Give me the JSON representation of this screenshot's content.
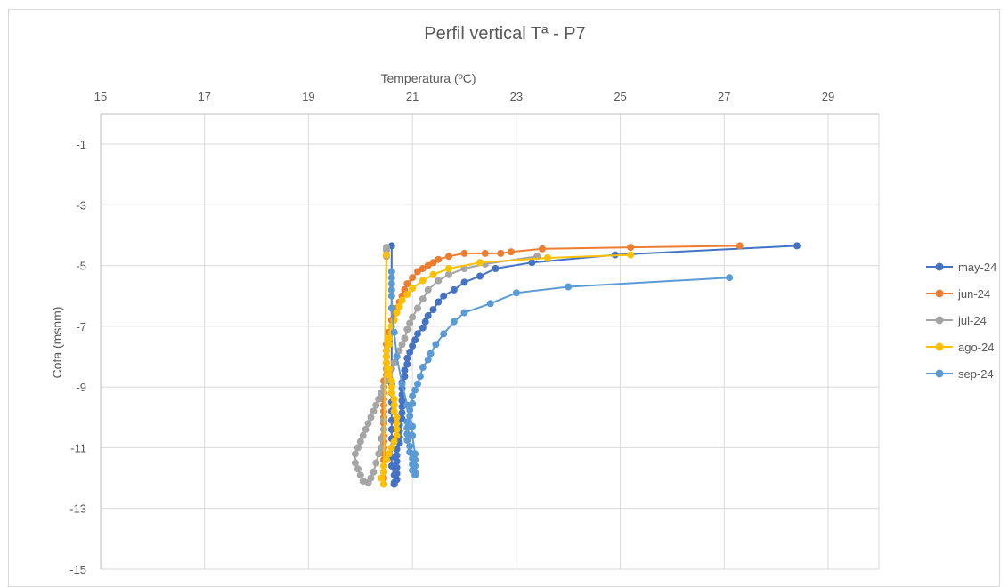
{
  "chart_data": {
    "type": "scatter",
    "title": "Perfil vertical Tª - P7",
    "xlabel": "Temperatura (ºC)",
    "ylabel": "Cota (msnm)",
    "xlim": [
      15,
      30
    ],
    "ylim": [
      -15,
      0
    ],
    "x_ticks": [
      15,
      17,
      19,
      21,
      23,
      25,
      27,
      29
    ],
    "y_ticks": [
      -1,
      -3,
      -5,
      -7,
      -9,
      -11,
      -13,
      -15
    ],
    "x_axis_position": "top",
    "grid": true,
    "legend_position": "right",
    "series": [
      {
        "name": "may-24",
        "color": "#4472c4",
        "x": [
          28.4,
          24.9,
          23.3,
          22.6,
          22.3,
          22.0,
          21.8,
          21.6,
          21.5,
          21.4,
          21.3,
          21.25,
          21.2,
          21.1,
          21.05,
          21.0,
          20.95,
          20.9,
          20.9,
          20.85,
          20.85,
          20.8,
          20.8,
          20.8,
          20.8,
          20.8,
          20.8,
          20.8,
          20.75,
          20.75,
          20.75,
          20.75,
          20.7,
          20.7,
          20.7,
          20.7,
          20.7,
          20.7,
          20.65,
          20.65,
          20.65,
          20.65,
          20.6,
          20.6,
          20.6,
          20.6,
          20.6,
          20.6,
          20.6,
          20.6,
          20.6,
          20.6,
          20.6
        ],
        "y": [
          -4.35,
          -4.65,
          -4.9,
          -5.1,
          -5.35,
          -5.55,
          -5.8,
          -6.0,
          -6.2,
          -6.45,
          -6.65,
          -6.85,
          -7.05,
          -7.25,
          -7.45,
          -7.65,
          -7.85,
          -8.05,
          -8.25,
          -8.45,
          -8.65,
          -8.85,
          -9.05,
          -9.25,
          -9.45,
          -9.65,
          -9.85,
          -10.05,
          -10.25,
          -10.45,
          -10.65,
          -10.85,
          -11.05,
          -11.25,
          -11.45,
          -11.65,
          -11.85,
          -12.05,
          -12.15,
          -12.2,
          -12.2,
          -11.9,
          -11.6,
          -11.3,
          -11.0,
          -10.7,
          -10.4,
          -10.1,
          -9.8,
          -9.5,
          -9.2,
          -8.9,
          -4.35
        ]
      },
      {
        "name": "jun-24",
        "color": "#ed7d31",
        "x": [
          27.3,
          25.2,
          23.5,
          22.9,
          22.7,
          22.4,
          22.0,
          21.7,
          21.5,
          21.4,
          21.3,
          21.2,
          21.1,
          21.0,
          20.9,
          20.85,
          20.8,
          20.75,
          20.7,
          20.65,
          20.6,
          20.6,
          20.55,
          20.55,
          20.5,
          20.5,
          20.5,
          20.5,
          20.5,
          20.5,
          20.45,
          20.45,
          20.45,
          20.45,
          20.45,
          20.45,
          20.45,
          20.45,
          20.45,
          20.45,
          20.45,
          20.45,
          20.45,
          20.45,
          20.45,
          20.45,
          20.45,
          20.45
        ],
        "y": [
          -4.35,
          -4.4,
          -4.45,
          -4.55,
          -4.6,
          -4.6,
          -4.6,
          -4.7,
          -4.8,
          -4.9,
          -5.0,
          -5.1,
          -5.2,
          -5.4,
          -5.6,
          -5.8,
          -6.0,
          -6.2,
          -6.4,
          -6.6,
          -6.8,
          -7.0,
          -7.2,
          -7.4,
          -7.6,
          -7.8,
          -8.0,
          -8.2,
          -8.4,
          -8.6,
          -8.8,
          -9.0,
          -9.2,
          -9.4,
          -9.6,
          -9.8,
          -10.0,
          -10.2,
          -10.4,
          -10.6,
          -10.8,
          -11.0,
          -11.2,
          -11.4,
          -11.6,
          -11.8,
          -12.0,
          -12.2
        ]
      },
      {
        "name": "jul-24",
        "color": "#a5a5a5",
        "x": [
          23.4,
          22.4,
          22.0,
          21.7,
          21.5,
          21.3,
          21.2,
          21.1,
          21.0,
          20.95,
          20.9,
          20.85,
          20.8,
          20.75,
          20.7,
          20.65,
          20.6,
          20.55,
          20.5,
          20.45,
          20.4,
          20.35,
          20.3,
          20.25,
          20.2,
          20.15,
          20.1,
          20.05,
          20.0,
          19.95,
          19.9,
          19.9,
          19.95,
          20.0,
          20.05,
          20.15,
          20.2,
          20.25,
          20.3,
          20.35,
          20.4,
          20.4,
          20.45,
          20.45,
          20.5,
          20.5,
          20.5
        ],
        "y": [
          -4.7,
          -4.95,
          -5.1,
          -5.3,
          -5.5,
          -5.8,
          -6.1,
          -6.4,
          -6.7,
          -6.9,
          -7.1,
          -7.4,
          -7.6,
          -7.8,
          -8.0,
          -8.2,
          -8.4,
          -8.6,
          -8.8,
          -9.0,
          -9.2,
          -9.4,
          -9.6,
          -9.8,
          -10.0,
          -10.2,
          -10.4,
          -10.6,
          -10.8,
          -11.0,
          -11.2,
          -11.5,
          -11.7,
          -11.9,
          -12.1,
          -12.15,
          -12.0,
          -11.8,
          -11.5,
          -11.2,
          -11.0,
          -10.7,
          -10.4,
          -10.1,
          -4.7,
          -4.5,
          -4.4
        ]
      },
      {
        "name": "ago-24",
        "color": "#ffc000",
        "x": [
          25.2,
          23.6,
          22.3,
          21.7,
          21.4,
          21.2,
          21.0,
          20.9,
          20.8,
          20.75,
          20.7,
          20.65,
          20.6,
          20.6,
          20.55,
          20.55,
          20.5,
          20.5,
          20.5,
          20.55,
          20.55,
          20.6,
          20.6,
          20.6,
          20.65,
          20.65,
          20.65,
          20.7,
          20.7,
          20.7,
          20.7,
          20.65,
          20.6,
          20.55,
          20.5,
          20.45,
          20.45,
          20.4,
          20.45,
          20.5
        ],
        "y": [
          -4.65,
          -4.75,
          -4.9,
          -5.1,
          -5.3,
          -5.5,
          -5.75,
          -5.95,
          -6.15,
          -6.35,
          -6.55,
          -6.8,
          -7.0,
          -7.2,
          -7.4,
          -7.6,
          -7.8,
          -8.0,
          -8.2,
          -8.4,
          -8.6,
          -8.8,
          -9.0,
          -9.2,
          -9.4,
          -9.6,
          -9.8,
          -10.0,
          -10.2,
          -10.4,
          -10.6,
          -10.8,
          -11.0,
          -11.2,
          -11.4,
          -11.6,
          -11.8,
          -12.0,
          -12.2,
          -4.65
        ]
      },
      {
        "name": "sep-24",
        "color": "#5b9bd5",
        "x": [
          27.1,
          24.0,
          23.0,
          22.5,
          22.0,
          21.8,
          21.6,
          21.45,
          21.35,
          21.3,
          21.2,
          21.15,
          21.1,
          21.05,
          21.0,
          21.0,
          20.95,
          20.95,
          20.9,
          20.9,
          20.9,
          20.9,
          20.95,
          20.95,
          21.0,
          21.0,
          21.0,
          21.05,
          21.05,
          21.05,
          21.05,
          21.05,
          21.0,
          21.0,
          20.9,
          20.8,
          20.7,
          20.65,
          20.6,
          20.6,
          20.6,
          20.6,
          20.6,
          20.6
        ],
        "y": [
          -5.4,
          -5.7,
          -5.9,
          -6.25,
          -6.55,
          -6.85,
          -7.25,
          -7.6,
          -7.9,
          -8.1,
          -8.35,
          -8.65,
          -8.9,
          -9.1,
          -9.3,
          -9.55,
          -9.75,
          -9.95,
          -10.15,
          -10.35,
          -10.55,
          -10.75,
          -10.95,
          -11.15,
          -11.35,
          -11.55,
          -11.75,
          -11.9,
          -11.8,
          -11.6,
          -11.4,
          -11.2,
          -10.6,
          -10.3,
          -9.6,
          -8.9,
          -8.0,
          -7.2,
          -6.4,
          -6.0,
          -5.8,
          -5.6,
          -5.4,
          -5.2
        ]
      }
    ]
  }
}
